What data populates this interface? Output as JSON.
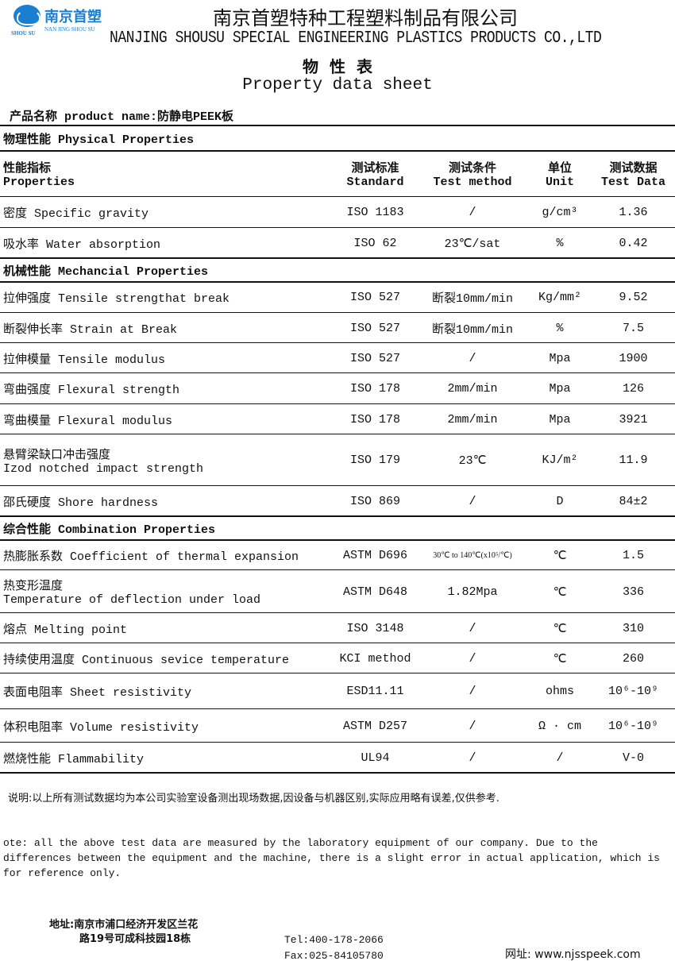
{
  "logo": {
    "cn": "南京首塑",
    "en": "NAN JING SHOU SU",
    "mark": "SHOU SU"
  },
  "header": {
    "company_cn": "南京首塑特种工程塑料制品有限公司",
    "company_en": "NANJING SHOUSU SPECIAL ENGINEERING PLASTICS PRODUCTS CO.,LTD",
    "sheet_cn": "物性表",
    "sheet_en": "Property data sheet"
  },
  "product": "产品名称 product name:防静电PEEK板",
  "columns": [
    "性能指标\nProperties",
    "测试标准\nStandard",
    "测试条件\nTest method",
    "单位\nUnit",
    "测试数据\nTest Data"
  ],
  "rows": [
    {
      "section": "物理性能 Physical Properties"
    },
    {
      "header": true
    },
    {
      "p": "密度   Specific gravity",
      "s": "ISO 1183",
      "t": "/",
      "u": "g/cm³",
      "d": "1.36"
    },
    {
      "p": "吸水率  Water absorption",
      "s": "ISO 62",
      "t": "23℃/sat",
      "u": "%",
      "d": "0.42"
    },
    {
      "section": "机械性能 Mechancial Properties"
    },
    {
      "p": "拉伸强度   Tensile strengthat break",
      "s": "ISO 527",
      "t": "断裂10mm/min",
      "u": "Kg/mm²",
      "d": "9.52"
    },
    {
      "p": "断裂伸长率     Strain at Break",
      "s": "ISO 527",
      "t": "断裂10mm/min",
      "u": "%",
      "d": "7.5"
    },
    {
      "p": "拉伸模量   Tensile modulus",
      "s": "ISO 527",
      "t": "/",
      "u": "Mpa",
      "d": "1900"
    },
    {
      "p": "弯曲强度  Flexural strength",
      "s": "ISO 178",
      "t": "2mm/min",
      "u": "Mpa",
      "d": "126"
    },
    {
      "p": "弯曲模量  Flexural modulus",
      "s": "ISO 178",
      "t": "2mm/min",
      "u": "Mpa",
      "d": "3921"
    },
    {
      "p": "悬臂梁缺口冲击强度\nIzod notched impact strength",
      "s": "ISO 179",
      "t": "23℃",
      "u": "KJ/m²",
      "d": "11.9"
    },
    {
      "p": "邵氏硬度   Shore hardness",
      "s": "ISO 869",
      "t": "/",
      "u": "D",
      "d": "84±2"
    },
    {
      "section": "综合性能  Combination  Properties"
    },
    {
      "p": "热膨胀系数 Coefficient of thermal expansion",
      "s": "ASTM D696",
      "t": "30℃ to 140℃(x10⁵/℃)",
      "u": "℃",
      "d": "1.5",
      "small": true
    },
    {
      "p": "热变形温度\nTemperature of deflection under load",
      "s": "ASTM D648",
      "t": "1.82Mpa",
      "u": "℃",
      "d": "336"
    },
    {
      "p": "熔点  Melting point",
      "s": "ISO 3148",
      "t": "/",
      "u": "℃",
      "d": "310"
    },
    {
      "p": "持续使用温度 Continuous sevice temperature",
      "s": "KCI method",
      "t": "/",
      "u": "℃",
      "d": "260"
    },
    {
      "p": "表面电阻率 Sheet resistivity",
      "s": "ESD11.11",
      "t": "/",
      "u": "ohms",
      "d": "10⁶-10⁹"
    },
    {
      "p": "体积电阻率 Volume resistivity",
      "s": "ASTM D257",
      "t": "/",
      "u": "Ω · cm",
      "d": "10⁶-10⁹"
    },
    {
      "p": "燃烧性能 Flammability",
      "s": "UL94",
      "t": "/",
      "u": "/",
      "d": "V-0"
    }
  ],
  "note_cn": "说明:以上所有测试数据均为本公司实验室设备测出现场数据,因设备与机器区别,实际应用略有误差,仅供参考.",
  "note_en": "ote: all the above test data are measured by the laboratory equipment of our company. Due to the differences between the equipment and the machine, there is a slight error in actual application, which is for reference only.",
  "footer": {
    "address_1": "地址:南京市浦口经济开发区兰花",
    "address_2": "路19号可成科技园18栋",
    "tel": "Tel:400-178-2066",
    "fax": "Fax:025-84105780",
    "web": "网址: www.njsspeek.com"
  }
}
